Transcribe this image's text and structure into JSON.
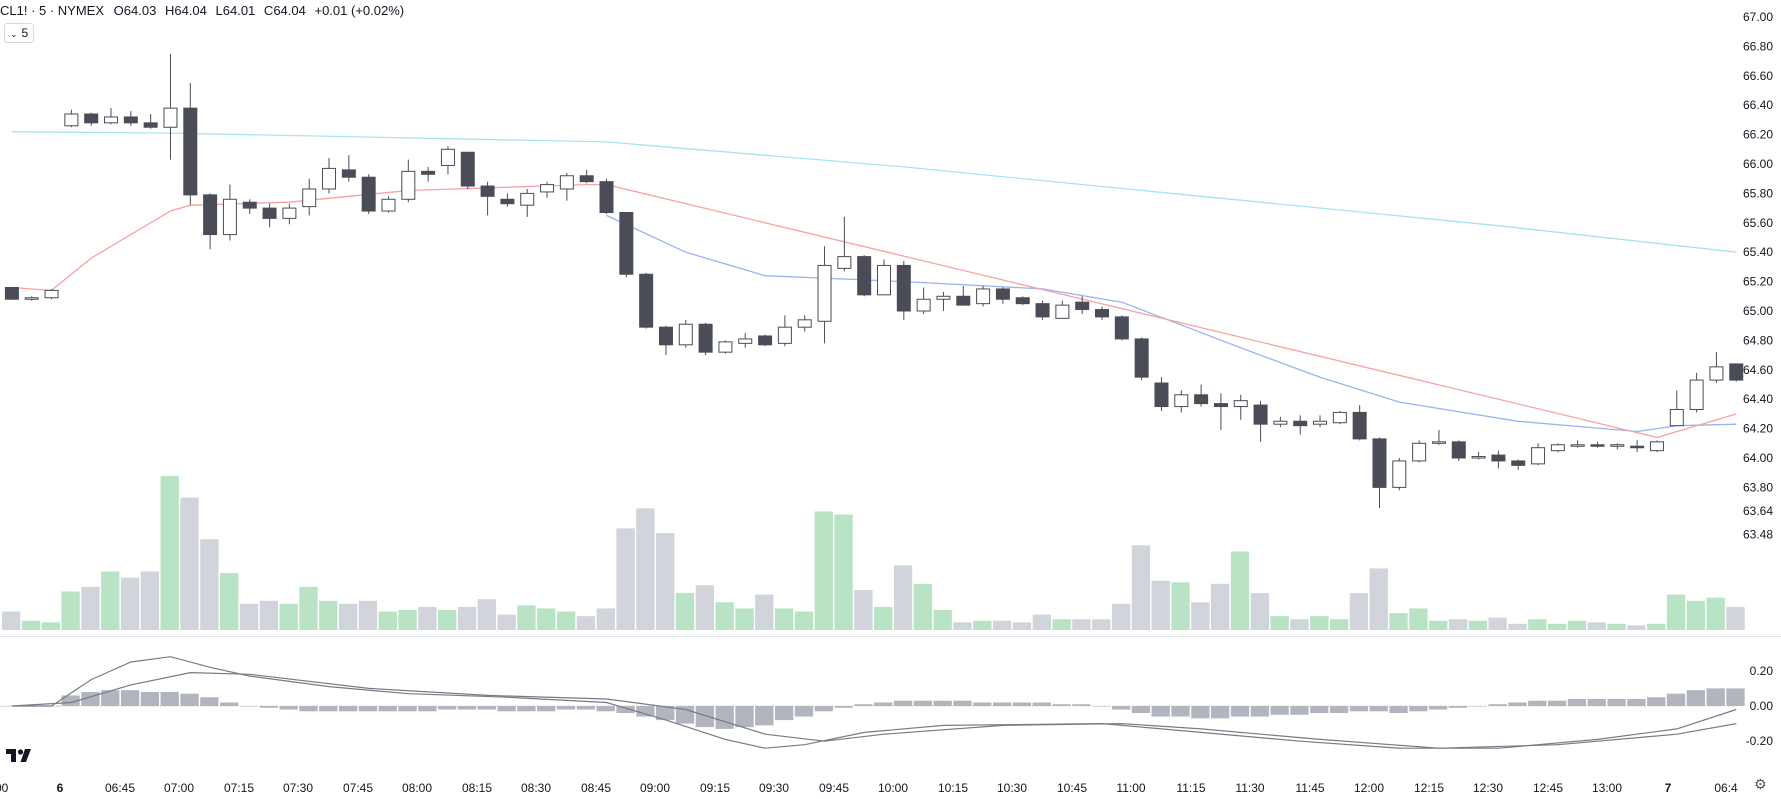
{
  "header": {
    "symbol": "CL1! · 5 · NYMEX",
    "open_label": "O",
    "open": "64.03",
    "high_label": "H",
    "high": "64.04",
    "low_label": "L",
    "low": "64.01",
    "close_label": "C",
    "close": "64.04",
    "change": "+0.01 (+0.02%)"
  },
  "interval_button": {
    "label": "5",
    "icon": "chevron-down-icon"
  },
  "colors": {
    "up_fill": "#ffffff",
    "down_fill": "#4a4c57",
    "wick": "#4a4c57",
    "vol_up": "#b8e3c4",
    "vol_down": "#d1d4da",
    "ma_long": "#a8e4ef",
    "ma_mid": "#98b4f0",
    "ma_short": "#f5a3a3",
    "macd_hist": "#b2b5be",
    "macd_line": "#787b86"
  },
  "chart_data": [
    {
      "type": "candlestick",
      "price_axis_ticks": [
        "67.00",
        "66.80",
        "66.60",
        "66.40",
        "66.20",
        "66.00",
        "65.80",
        "65.60",
        "65.40",
        "65.20",
        "65.00",
        "64.80",
        "64.60",
        "64.40",
        "64.20",
        "64.00",
        "63.80",
        "63.64",
        "63.48"
      ],
      "price_range": [
        63.48,
        67.0
      ],
      "time_axis_ticks": [
        ":00",
        "6",
        "06:45",
        "07:00",
        "07:15",
        "07:30",
        "07:45",
        "08:00",
        "08:15",
        "08:30",
        "08:45",
        "09:00",
        "09:15",
        "09:30",
        "09:45",
        "10:00",
        "10:15",
        "10:30",
        "10:45",
        "11:00",
        "11:15",
        "11:30",
        "11:45",
        "12:00",
        "12:15",
        "12:30",
        "12:45",
        "13:00",
        "7",
        "06:4"
      ],
      "bars": [
        {
          "o": 65.16,
          "h": 65.16,
          "l": 65.08,
          "c": 65.08
        },
        {
          "o": 65.08,
          "h": 65.1,
          "l": 65.07,
          "c": 65.09
        },
        {
          "o": 65.09,
          "h": 65.15,
          "l": 65.08,
          "c": 65.14
        },
        {
          "o": 66.26,
          "h": 66.37,
          "l": 66.25,
          "c": 66.34
        },
        {
          "o": 66.34,
          "h": 66.35,
          "l": 66.26,
          "c": 66.28
        },
        {
          "o": 66.28,
          "h": 66.38,
          "l": 66.27,
          "c": 66.32
        },
        {
          "o": 66.32,
          "h": 66.36,
          "l": 66.26,
          "c": 66.28
        },
        {
          "o": 66.28,
          "h": 66.34,
          "l": 66.24,
          "c": 66.25
        },
        {
          "o": 66.25,
          "h": 66.75,
          "l": 66.03,
          "c": 66.38
        },
        {
          "o": 66.38,
          "h": 66.55,
          "l": 65.72,
          "c": 65.79
        },
        {
          "o": 65.79,
          "h": 65.8,
          "l": 65.42,
          "c": 65.52
        },
        {
          "o": 65.52,
          "h": 65.86,
          "l": 65.48,
          "c": 65.76
        },
        {
          "o": 65.74,
          "h": 65.76,
          "l": 65.66,
          "c": 65.7
        },
        {
          "o": 65.7,
          "h": 65.73,
          "l": 65.57,
          "c": 65.63
        },
        {
          "o": 65.63,
          "h": 65.73,
          "l": 65.59,
          "c": 65.7
        },
        {
          "o": 65.71,
          "h": 65.9,
          "l": 65.65,
          "c": 65.83
        },
        {
          "o": 65.83,
          "h": 66.04,
          "l": 65.8,
          "c": 65.97
        },
        {
          "o": 65.96,
          "h": 66.06,
          "l": 65.88,
          "c": 65.91
        },
        {
          "o": 65.91,
          "h": 65.93,
          "l": 65.66,
          "c": 65.68
        },
        {
          "o": 65.68,
          "h": 65.78,
          "l": 65.67,
          "c": 65.76
        },
        {
          "o": 65.76,
          "h": 66.03,
          "l": 65.74,
          "c": 65.95
        },
        {
          "o": 65.95,
          "h": 65.98,
          "l": 65.88,
          "c": 65.93
        },
        {
          "o": 65.99,
          "h": 66.12,
          "l": 65.93,
          "c": 66.1
        },
        {
          "o": 66.08,
          "h": 66.08,
          "l": 65.83,
          "c": 65.85
        },
        {
          "o": 65.85,
          "h": 65.88,
          "l": 65.65,
          "c": 65.78
        },
        {
          "o": 65.76,
          "h": 65.8,
          "l": 65.71,
          "c": 65.73
        },
        {
          "o": 65.72,
          "h": 65.83,
          "l": 65.64,
          "c": 65.8
        },
        {
          "o": 65.81,
          "h": 65.88,
          "l": 65.77,
          "c": 65.86
        },
        {
          "o": 65.83,
          "h": 65.94,
          "l": 65.75,
          "c": 65.92
        },
        {
          "o": 65.92,
          "h": 65.96,
          "l": 65.87,
          "c": 65.88
        },
        {
          "o": 65.88,
          "h": 65.9,
          "l": 65.66,
          "c": 65.67
        },
        {
          "o": 65.67,
          "h": 65.67,
          "l": 65.23,
          "c": 65.25
        },
        {
          "o": 65.25,
          "h": 65.26,
          "l": 64.88,
          "c": 64.89
        },
        {
          "o": 64.89,
          "h": 64.9,
          "l": 64.7,
          "c": 64.77
        },
        {
          "o": 64.77,
          "h": 64.94,
          "l": 64.75,
          "c": 64.91
        },
        {
          "o": 64.91,
          "h": 64.92,
          "l": 64.7,
          "c": 64.72
        },
        {
          "o": 64.72,
          "h": 64.8,
          "l": 64.71,
          "c": 64.79
        },
        {
          "o": 64.78,
          "h": 64.85,
          "l": 64.75,
          "c": 64.81
        },
        {
          "o": 64.83,
          "h": 64.84,
          "l": 64.76,
          "c": 64.77
        },
        {
          "o": 64.78,
          "h": 64.97,
          "l": 64.76,
          "c": 64.89
        },
        {
          "o": 64.89,
          "h": 64.97,
          "l": 64.86,
          "c": 64.94
        },
        {
          "o": 64.93,
          "h": 65.44,
          "l": 64.78,
          "c": 65.31
        },
        {
          "o": 65.29,
          "h": 65.64,
          "l": 65.27,
          "c": 65.37
        },
        {
          "o": 65.37,
          "h": 65.38,
          "l": 65.1,
          "c": 65.11
        },
        {
          "o": 65.11,
          "h": 65.35,
          "l": 65.11,
          "c": 65.31
        },
        {
          "o": 65.31,
          "h": 65.34,
          "l": 64.94,
          "c": 65.0
        },
        {
          "o": 65.0,
          "h": 65.16,
          "l": 64.98,
          "c": 65.08
        },
        {
          "o": 65.08,
          "h": 65.13,
          "l": 65.0,
          "c": 65.1
        },
        {
          "o": 65.1,
          "h": 65.17,
          "l": 65.04,
          "c": 65.04
        },
        {
          "o": 65.05,
          "h": 65.17,
          "l": 65.03,
          "c": 65.15
        },
        {
          "o": 65.15,
          "h": 65.16,
          "l": 65.05,
          "c": 65.08
        },
        {
          "o": 65.09,
          "h": 65.1,
          "l": 65.04,
          "c": 65.05
        },
        {
          "o": 65.05,
          "h": 65.07,
          "l": 64.94,
          "c": 64.96
        },
        {
          "o": 64.95,
          "h": 65.07,
          "l": 64.95,
          "c": 65.04
        },
        {
          "o": 65.06,
          "h": 65.1,
          "l": 64.98,
          "c": 65.01
        },
        {
          "o": 65.01,
          "h": 65.03,
          "l": 64.94,
          "c": 64.96
        },
        {
          "o": 64.96,
          "h": 64.97,
          "l": 64.8,
          "c": 64.81
        },
        {
          "o": 64.81,
          "h": 64.82,
          "l": 64.53,
          "c": 64.55
        },
        {
          "o": 64.51,
          "h": 64.55,
          "l": 64.32,
          "c": 64.35
        },
        {
          "o": 64.35,
          "h": 64.46,
          "l": 64.31,
          "c": 64.43
        },
        {
          "o": 64.43,
          "h": 64.5,
          "l": 64.35,
          "c": 64.37
        },
        {
          "o": 64.37,
          "h": 64.44,
          "l": 64.19,
          "c": 64.35
        },
        {
          "o": 64.35,
          "h": 64.43,
          "l": 64.26,
          "c": 64.39
        },
        {
          "o": 64.36,
          "h": 64.39,
          "l": 64.11,
          "c": 64.23
        },
        {
          "o": 64.23,
          "h": 64.28,
          "l": 64.21,
          "c": 64.25
        },
        {
          "o": 64.25,
          "h": 64.29,
          "l": 64.16,
          "c": 64.22
        },
        {
          "o": 64.23,
          "h": 64.29,
          "l": 64.21,
          "c": 64.25
        },
        {
          "o": 64.24,
          "h": 64.32,
          "l": 64.23,
          "c": 64.31
        },
        {
          "o": 64.31,
          "h": 64.36,
          "l": 64.12,
          "c": 64.13
        },
        {
          "o": 64.13,
          "h": 64.14,
          "l": 63.66,
          "c": 63.8
        },
        {
          "o": 63.8,
          "h": 64.0,
          "l": 63.78,
          "c": 63.98
        },
        {
          "o": 63.98,
          "h": 64.12,
          "l": 63.97,
          "c": 64.1
        },
        {
          "o": 64.1,
          "h": 64.19,
          "l": 64.09,
          "c": 64.11
        },
        {
          "o": 64.11,
          "h": 64.12,
          "l": 63.98,
          "c": 64.0
        },
        {
          "o": 64.0,
          "h": 64.04,
          "l": 63.99,
          "c": 64.01
        },
        {
          "o": 64.02,
          "h": 64.05,
          "l": 63.93,
          "c": 63.98
        },
        {
          "o": 63.98,
          "h": 63.99,
          "l": 63.92,
          "c": 63.95
        },
        {
          "o": 63.96,
          "h": 64.1,
          "l": 63.95,
          "c": 64.07
        },
        {
          "o": 64.05,
          "h": 64.1,
          "l": 64.04,
          "c": 64.09
        },
        {
          "o": 64.09,
          "h": 64.12,
          "l": 64.07,
          "c": 64.09
        },
        {
          "o": 64.09,
          "h": 64.11,
          "l": 64.07,
          "c": 64.08
        },
        {
          "o": 64.08,
          "h": 64.1,
          "l": 64.06,
          "c": 64.09
        },
        {
          "o": 64.08,
          "h": 64.12,
          "l": 64.04,
          "c": 64.07
        },
        {
          "o": 64.05,
          "h": 64.12,
          "l": 64.04,
          "c": 64.11
        },
        {
          "o": 64.22,
          "h": 64.46,
          "l": 64.22,
          "c": 64.33
        },
        {
          "o": 64.33,
          "h": 64.58,
          "l": 64.31,
          "c": 64.53
        },
        {
          "o": 64.53,
          "h": 64.72,
          "l": 64.51,
          "c": 64.62
        },
        {
          "o": 64.64,
          "h": 64.64,
          "l": 64.52,
          "c": 64.53
        }
      ],
      "volume": [
        0.12,
        0.06,
        0.05,
        0.25,
        0.28,
        0.38,
        0.34,
        0.38,
        1.0,
        0.86,
        0.59,
        0.37,
        0.17,
        0.19,
        0.17,
        0.28,
        0.19,
        0.17,
        0.19,
        0.12,
        0.13,
        0.15,
        0.13,
        0.15,
        0.2,
        0.1,
        0.16,
        0.14,
        0.12,
        0.09,
        0.14,
        0.66,
        0.79,
        0.63,
        0.24,
        0.29,
        0.18,
        0.14,
        0.23,
        0.14,
        0.12,
        0.77,
        0.75,
        0.26,
        0.15,
        0.42,
        0.3,
        0.13,
        0.05,
        0.06,
        0.06,
        0.05,
        0.1,
        0.07,
        0.07,
        0.07,
        0.17,
        0.55,
        0.32,
        0.31,
        0.18,
        0.3,
        0.51,
        0.24,
        0.09,
        0.07,
        0.09,
        0.07,
        0.24,
        0.4,
        0.11,
        0.14,
        0.06,
        0.07,
        0.06,
        0.08,
        0.04,
        0.07,
        0.04,
        0.06,
        0.05,
        0.04,
        0.03,
        0.04,
        0.23,
        0.19,
        0.21,
        0.15
      ],
      "moving_averages": {
        "long": [
          [
            0,
            66.22
          ],
          [
            8,
            66.21
          ],
          [
            30,
            66.15
          ],
          [
            45,
            65.98
          ],
          [
            60,
            65.78
          ],
          [
            75,
            65.58
          ],
          [
            87,
            65.4
          ]
        ],
        "mid": [
          [
            30,
            65.65
          ],
          [
            34,
            65.4
          ],
          [
            38,
            65.24
          ],
          [
            45,
            65.2
          ],
          [
            52,
            65.15
          ],
          [
            56,
            65.06
          ],
          [
            62,
            64.75
          ],
          [
            66,
            64.55
          ],
          [
            70,
            64.38
          ],
          [
            76,
            64.25
          ],
          [
            82,
            64.18
          ],
          [
            84,
            64.22
          ],
          [
            87,
            64.23
          ]
        ],
        "short": [
          [
            0,
            65.16
          ],
          [
            2,
            65.14
          ],
          [
            4,
            65.36
          ],
          [
            8,
            65.68
          ],
          [
            9,
            65.72
          ],
          [
            14,
            65.74
          ],
          [
            20,
            65.82
          ],
          [
            29,
            65.86
          ],
          [
            30,
            65.86
          ],
          [
            83,
            64.14
          ],
          [
            85,
            64.22
          ],
          [
            87,
            64.3
          ]
        ]
      }
    },
    {
      "type": "bar",
      "name": "MACD",
      "axis_ticks": [
        "0.20",
        "0.00",
        "-0.20"
      ],
      "ylim": [
        -0.25,
        0.3
      ],
      "histogram": [
        0,
        0,
        0,
        0.06,
        0.08,
        0.09,
        0.09,
        0.08,
        0.08,
        0.07,
        0.05,
        0.02,
        0.0,
        -0.01,
        -0.02,
        -0.03,
        -0.03,
        -0.03,
        -0.03,
        -0.03,
        -0.03,
        -0.03,
        -0.02,
        -0.02,
        -0.02,
        -0.03,
        -0.03,
        -0.03,
        -0.02,
        -0.02,
        -0.03,
        -0.04,
        -0.06,
        -0.08,
        -0.1,
        -0.12,
        -0.13,
        -0.12,
        -0.11,
        -0.08,
        -0.06,
        -0.03,
        -0.01,
        0.01,
        0.02,
        0.03,
        0.03,
        0.03,
        0.03,
        0.02,
        0.02,
        0.02,
        0.02,
        0.01,
        0.01,
        0.0,
        -0.02,
        -0.04,
        -0.06,
        -0.06,
        -0.07,
        -0.07,
        -0.06,
        -0.06,
        -0.05,
        -0.05,
        -0.04,
        -0.04,
        -0.03,
        -0.03,
        -0.04,
        -0.03,
        -0.02,
        -0.01,
        0.0,
        0.01,
        0.02,
        0.03,
        0.03,
        0.04,
        0.04,
        0.04,
        0.04,
        0.05,
        0.07,
        0.09,
        0.1,
        0.1
      ],
      "macd_line": [
        [
          0,
          0
        ],
        [
          2,
          0.0
        ],
        [
          4,
          0.15
        ],
        [
          6,
          0.25
        ],
        [
          8,
          0.28
        ],
        [
          10,
          0.22
        ],
        [
          12,
          0.17
        ],
        [
          16,
          0.11
        ],
        [
          20,
          0.07
        ],
        [
          25,
          0.05
        ],
        [
          30,
          0.02
        ],
        [
          33,
          -0.08
        ],
        [
          36,
          -0.19
        ],
        [
          38,
          -0.24
        ],
        [
          40,
          -0.22
        ],
        [
          43,
          -0.15
        ],
        [
          47,
          -0.11
        ],
        [
          55,
          -0.1
        ],
        [
          60,
          -0.15
        ],
        [
          65,
          -0.2
        ],
        [
          70,
          -0.24
        ],
        [
          75,
          -0.24
        ],
        [
          80,
          -0.19
        ],
        [
          84,
          -0.13
        ],
        [
          87,
          -0.02
        ]
      ],
      "signal_line": [
        [
          0,
          0
        ],
        [
          3,
          0.02
        ],
        [
          6,
          0.12
        ],
        [
          9,
          0.19
        ],
        [
          12,
          0.18
        ],
        [
          18,
          0.1
        ],
        [
          24,
          0.06
        ],
        [
          30,
          0.04
        ],
        [
          34,
          -0.02
        ],
        [
          38,
          -0.16
        ],
        [
          41,
          -0.2
        ],
        [
          44,
          -0.16
        ],
        [
          50,
          -0.11
        ],
        [
          56,
          -0.1
        ],
        [
          60,
          -0.13
        ],
        [
          66,
          -0.19
        ],
        [
          72,
          -0.24
        ],
        [
          78,
          -0.22
        ],
        [
          84,
          -0.16
        ],
        [
          87,
          -0.1
        ]
      ]
    }
  ]
}
